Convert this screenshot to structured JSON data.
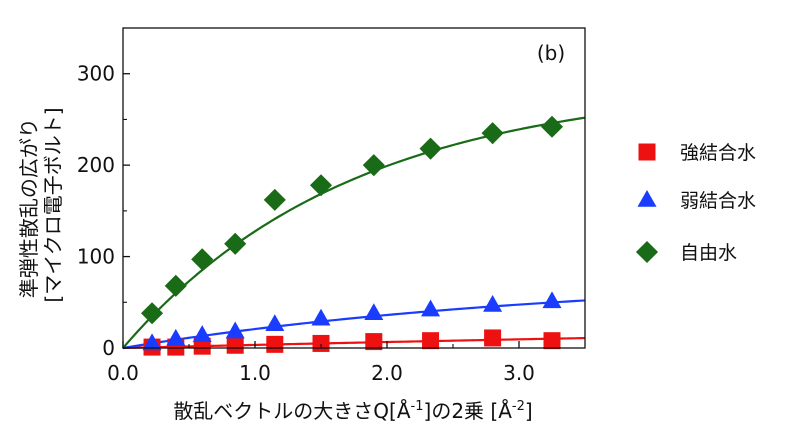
{
  "chart_data": {
    "type": "scatter",
    "panel_label": "(b)",
    "ylabel_line1": "準弾性散乱の広がり",
    "ylabel_line2": "[マイクロ電子ボルト]",
    "xlabel_main": "散乱ベクトルの大きさQ[Å",
    "xlabel_sup1": "-1",
    "xlabel_mid": "]の2乗 [Å",
    "xlabel_sup2": "-2",
    "xlabel_end": "]",
    "xlim": [
      0,
      3.5
    ],
    "ylim": [
      0,
      350
    ],
    "x_ticks": [
      0.0,
      1.0,
      2.0,
      3.0
    ],
    "x_tick_labels": [
      "0.0",
      "1.0",
      "2.0",
      "3.0"
    ],
    "y_ticks": [
      0,
      100,
      200,
      300
    ],
    "y_tick_labels": [
      "0",
      "100",
      "200",
      "300"
    ],
    "legend_position": "right",
    "series": [
      {
        "name": "強結合水",
        "marker": "square",
        "color": "#ee1111",
        "fit_color": "#ee1111",
        "fit": {
          "a": 50,
          "b": 0.07
        },
        "x": [
          0.22,
          0.4,
          0.6,
          0.85,
          1.15,
          1.5,
          1.9,
          2.33,
          2.8,
          3.25
        ],
        "y": [
          1,
          1,
          2,
          3,
          4,
          5,
          7,
          8,
          11,
          8
        ]
      },
      {
        "name": "弱結合水",
        "marker": "triangle",
        "color": "#1a3cff",
        "fit_color": "#1a3cff",
        "fit": {
          "a": 80,
          "b": 0.3
        },
        "x": [
          0.22,
          0.4,
          0.6,
          0.85,
          1.15,
          1.5,
          1.9,
          2.33,
          2.8,
          3.25
        ],
        "y": [
          5,
          10,
          14,
          18,
          26,
          32,
          38,
          42,
          47,
          51
        ]
      },
      {
        "name": "自由水",
        "marker": "diamond",
        "color": "#1a6b17",
        "fit_color": "#1a6b17",
        "fit": {
          "a": 290,
          "b": 0.58
        },
        "x": [
          0.22,
          0.4,
          0.6,
          0.85,
          1.15,
          1.5,
          1.9,
          2.33,
          2.8,
          3.25
        ],
        "y": [
          38,
          68,
          97,
          114,
          162,
          178,
          200,
          218,
          235,
          242
        ]
      }
    ]
  }
}
